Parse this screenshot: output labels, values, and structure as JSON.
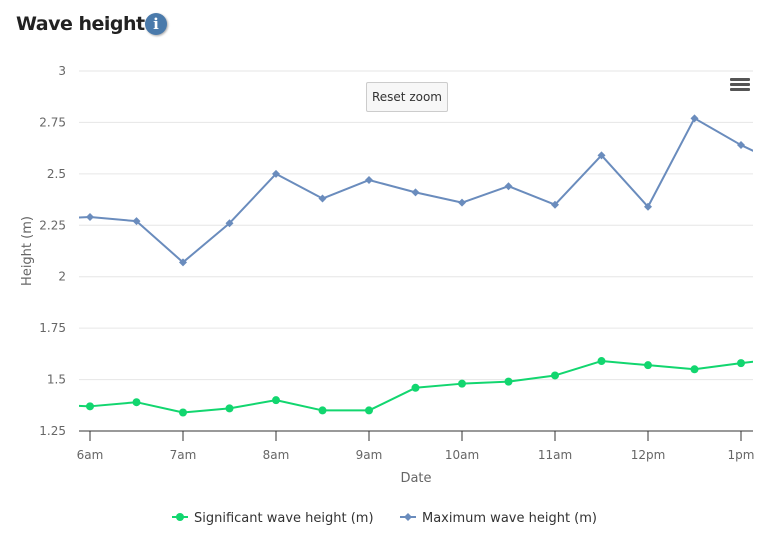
{
  "header": {
    "title": "Wave height",
    "info_icon": "info-circle-icon"
  },
  "toolbar": {
    "reset_zoom_label": "Reset zoom",
    "menu_icon": "hamburger-menu-icon"
  },
  "colors": {
    "significant": "#12d66f",
    "maximum": "#6a8cbd",
    "grid": "#e6e6e6",
    "info_icon": "#4a7aab"
  },
  "chart_data": {
    "type": "line",
    "title": "Wave height",
    "xlabel": "Date",
    "ylabel": "Height (m)",
    "ylim": [
      1.25,
      3
    ],
    "yticks": [
      "1.25",
      "1.5",
      "1.75",
      "2",
      "2.25",
      "2.5",
      "2.75",
      "3"
    ],
    "xticks": [
      "6am",
      "7am",
      "8am",
      "9am",
      "10am",
      "11am",
      "12pm",
      "1pm"
    ],
    "grid": true,
    "legend_position": "bottom",
    "x": [
      "6:00",
      "6:30",
      "7:00",
      "7:30",
      "8:00",
      "8:30",
      "9:00",
      "9:30",
      "10:00",
      "10:30",
      "11:00",
      "11:30",
      "12:00",
      "12:30",
      "13:00"
    ],
    "series": [
      {
        "name": "Significant wave height (m)",
        "marker": "circle",
        "values": [
          1.37,
          1.39,
          1.34,
          1.36,
          1.4,
          1.35,
          1.35,
          1.46,
          1.48,
          1.49,
          1.52,
          1.59,
          1.57,
          1.55,
          1.58
        ]
      },
      {
        "name": "Maximum wave height (m)",
        "marker": "diamond",
        "values": [
          2.29,
          2.27,
          2.07,
          2.26,
          2.5,
          2.38,
          2.47,
          2.41,
          2.36,
          2.44,
          2.35,
          2.59,
          2.34,
          2.77,
          2.64
        ]
      }
    ]
  }
}
